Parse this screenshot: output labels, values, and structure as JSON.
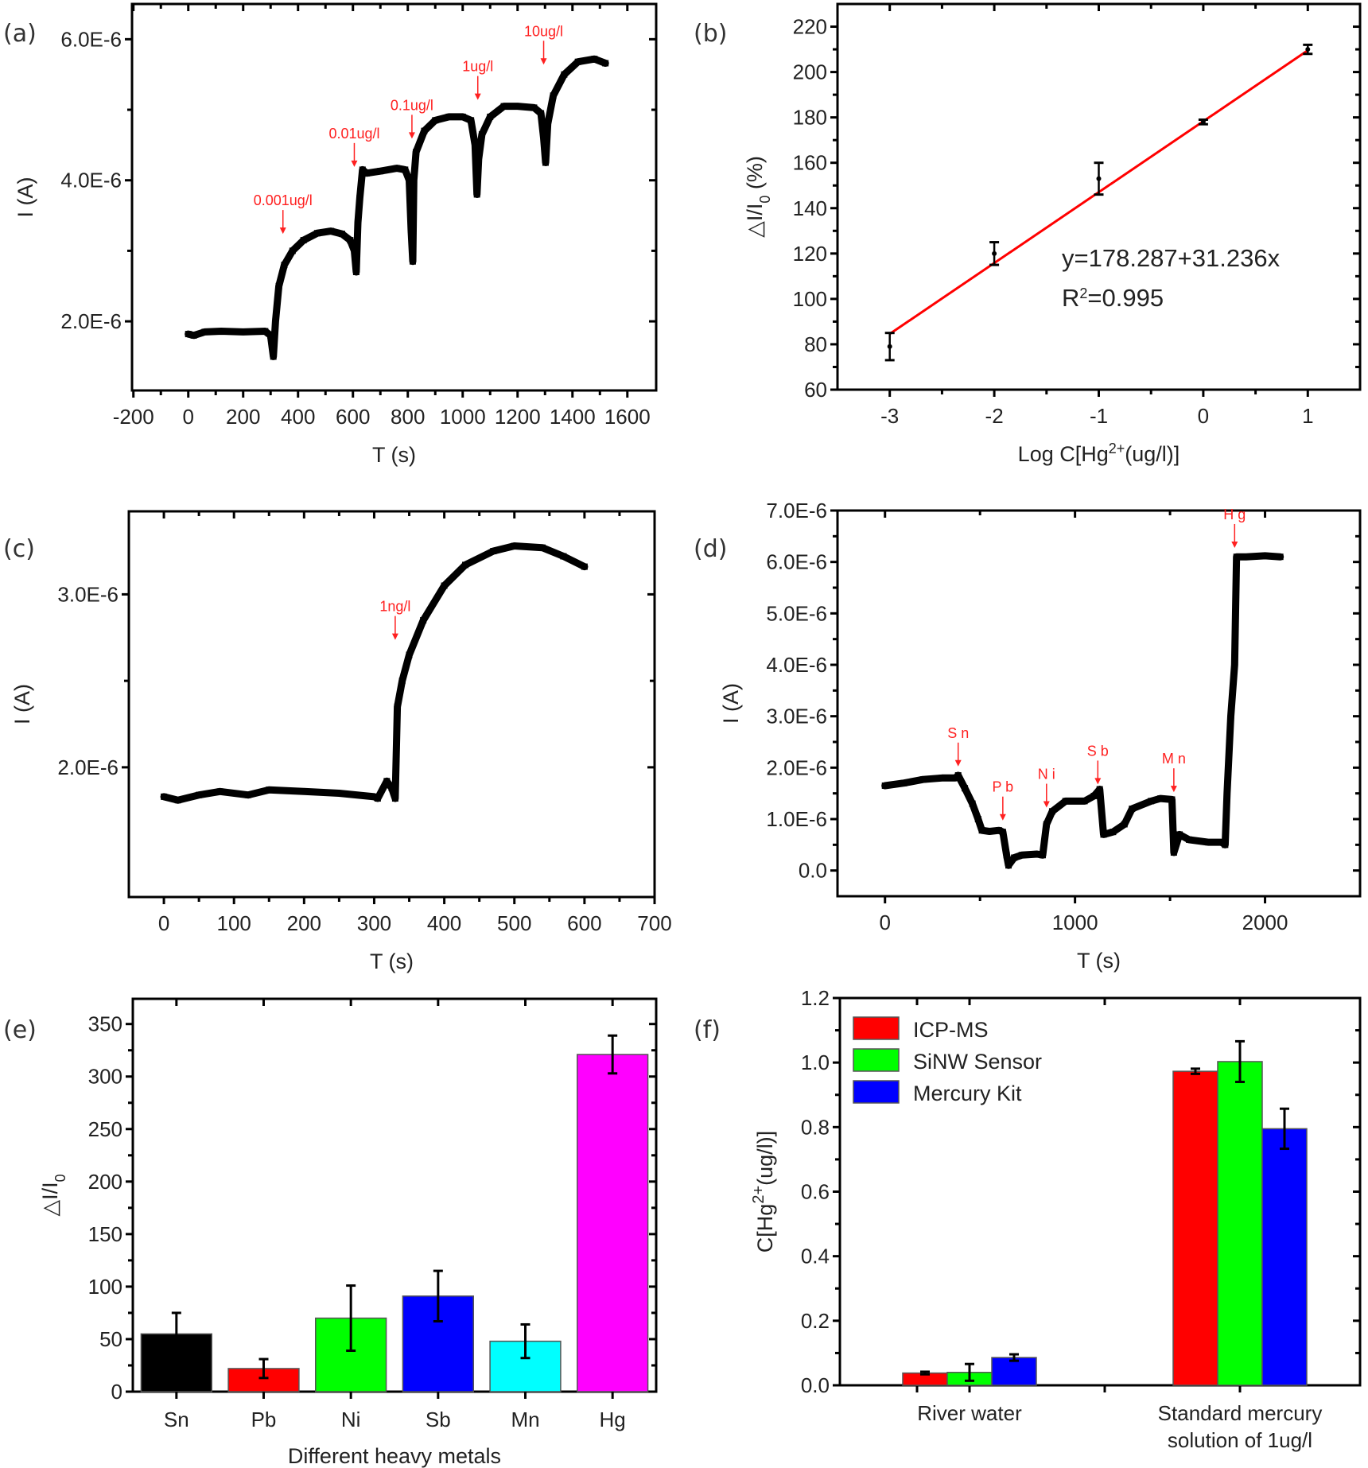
{
  "chart_data": [
    {
      "id": "a",
      "panel_label": "(a)",
      "type": "scatter",
      "xlabel": "T (s)",
      "ylabel": "I (A)",
      "xlim": [
        -205,
        1705
      ],
      "ylim": [
        1.02e-06,
        6.5e-06
      ],
      "xticks": [
        -200,
        0,
        200,
        400,
        600,
        800,
        1000,
        1200,
        1400,
        1600
      ],
      "xtick_labels": [
        "-200",
        "0",
        "200",
        "400",
        "600",
        "800",
        "1000",
        "1200",
        "1400",
        "1600"
      ],
      "yticks": [
        2e-06,
        4e-06,
        6e-06
      ],
      "ytick_labels": [
        "2.0E-6",
        "4.0E-6",
        "6.0E-6"
      ],
      "trace": [
        [
          0,
          1.82e-06
        ],
        [
          20,
          1.8e-06
        ],
        [
          60,
          1.85e-06
        ],
        [
          120,
          1.86e-06
        ],
        [
          200,
          1.85e-06
        ],
        [
          280,
          1.86e-06
        ],
        [
          300,
          1.8e-06
        ],
        [
          310,
          1.5e-06
        ],
        [
          318,
          2e-06
        ],
        [
          330,
          2.5e-06
        ],
        [
          350,
          2.8e-06
        ],
        [
          380,
          3e-06
        ],
        [
          420,
          3.15e-06
        ],
        [
          470,
          3.25e-06
        ],
        [
          520,
          3.28e-06
        ],
        [
          560,
          3.24e-06
        ],
        [
          590,
          3.15e-06
        ],
        [
          605,
          3e-06
        ],
        [
          612,
          2.7e-06
        ],
        [
          618,
          3.4e-06
        ],
        [
          625,
          3.75e-06
        ],
        [
          635,
          4.15e-06
        ],
        [
          650,
          4.1e-06
        ],
        [
          700,
          4.13e-06
        ],
        [
          760,
          4.17e-06
        ],
        [
          790,
          4.15e-06
        ],
        [
          805,
          4e-06
        ],
        [
          812,
          3.3e-06
        ],
        [
          818,
          2.85e-06
        ],
        [
          822,
          4e-06
        ],
        [
          830,
          4.4e-06
        ],
        [
          860,
          4.7e-06
        ],
        [
          900,
          4.85e-06
        ],
        [
          950,
          4.9e-06
        ],
        [
          1000,
          4.9e-06
        ],
        [
          1030,
          4.85e-06
        ],
        [
          1045,
          4.5e-06
        ],
        [
          1052,
          3.8e-06
        ],
        [
          1058,
          4.3e-06
        ],
        [
          1070,
          4.65e-06
        ],
        [
          1100,
          4.9e-06
        ],
        [
          1150,
          5.05e-06
        ],
        [
          1200,
          5.05e-06
        ],
        [
          1260,
          5.03e-06
        ],
        [
          1285,
          4.95e-06
        ],
        [
          1295,
          4.6e-06
        ],
        [
          1302,
          4.25e-06
        ],
        [
          1310,
          4.8e-06
        ],
        [
          1330,
          5.2e-06
        ],
        [
          1370,
          5.5e-06
        ],
        [
          1420,
          5.68e-06
        ],
        [
          1480,
          5.72e-06
        ],
        [
          1520,
          5.66e-06
        ]
      ],
      "annotations": [
        {
          "text": "0.001ug/l",
          "x": 345,
          "y": 3.15e-06
        },
        {
          "text": "0.01ug/l",
          "x": 605,
          "y": 4.1e-06
        },
        {
          "text": "0.1ug/l",
          "x": 815,
          "y": 4.5e-06
        },
        {
          "text": "1ug/l",
          "x": 1055,
          "y": 5.05e-06
        },
        {
          "text": "10ug/l",
          "x": 1295,
          "y": 5.55e-06
        }
      ]
    },
    {
      "id": "b",
      "panel_label": "(b)",
      "type": "scatter",
      "xlabel": "Log C[Hg",
      "xlabel_sup": "2+",
      "xlabel_tail": "(ug/l)]",
      "ylabel": "△I/I",
      "ylabel_sub": "0",
      "ylabel_tail": " (%)",
      "xlim": [
        -3.5,
        1.5
      ],
      "ylim": [
        60,
        230
      ],
      "xticks": [
        -3,
        -2,
        -1,
        0,
        1
      ],
      "xtick_labels": [
        "-3",
        "-2",
        "-1",
        "0",
        "1"
      ],
      "yticks": [
        60,
        80,
        100,
        120,
        140,
        160,
        180,
        200,
        220
      ],
      "ytick_labels": [
        "60",
        "80",
        "100",
        "120",
        "140",
        "160",
        "180",
        "200",
        "220"
      ],
      "points": [
        {
          "x": -3,
          "y": 79,
          "err_low": 73,
          "err_high": 85
        },
        {
          "x": -2,
          "y": 120,
          "err_low": 115,
          "err_high": 125
        },
        {
          "x": -1,
          "y": 153,
          "err_low": 146,
          "err_high": 160
        },
        {
          "x": 0,
          "y": 178,
          "err_low": 177,
          "err_high": 179
        },
        {
          "x": 1,
          "y": 210,
          "err_low": 208,
          "err_high": 212
        }
      ],
      "fit": {
        "intercept": 178.287,
        "slope": 31.236,
        "x_from": -3,
        "x_to": 1,
        "color": "#ff0000"
      },
      "equation": "y=178.287+31.236x",
      "r2_prefix": "R",
      "r2_sup": "2",
      "r2_value": "=0.995"
    },
    {
      "id": "c",
      "panel_label": "(c)",
      "type": "scatter",
      "xlabel": "T (s)",
      "ylabel": "I (A)",
      "xlim": [
        -50,
        700
      ],
      "ylim": [
        1.25e-06,
        3.48e-06
      ],
      "xticks": [
        0,
        100,
        200,
        300,
        400,
        500,
        600,
        700
      ],
      "xtick_labels": [
        "0",
        "100",
        "200",
        "300",
        "400",
        "500",
        "600",
        "700"
      ],
      "yticks": [
        2e-06,
        3e-06
      ],
      "ytick_labels": [
        "2.0E-6",
        "3.0E-6"
      ],
      "trace": [
        [
          0,
          1.83e-06
        ],
        [
          20,
          1.81e-06
        ],
        [
          50,
          1.84e-06
        ],
        [
          80,
          1.86e-06
        ],
        [
          120,
          1.84e-06
        ],
        [
          150,
          1.87e-06
        ],
        [
          200,
          1.86e-06
        ],
        [
          250,
          1.85e-06
        ],
        [
          300,
          1.83e-06
        ],
        [
          305,
          1.82e-06
        ],
        [
          318,
          1.92e-06
        ],
        [
          325,
          1.88e-06
        ],
        [
          330,
          1.82e-06
        ],
        [
          333,
          2.35e-06
        ],
        [
          340,
          2.5e-06
        ],
        [
          350,
          2.65e-06
        ],
        [
          370,
          2.85e-06
        ],
        [
          400,
          3.05e-06
        ],
        [
          430,
          3.17e-06
        ],
        [
          470,
          3.25e-06
        ],
        [
          500,
          3.28e-06
        ],
        [
          540,
          3.27e-06
        ],
        [
          570,
          3.22e-06
        ],
        [
          600,
          3.16e-06
        ]
      ],
      "annotations": [
        {
          "text": "1ng/l",
          "x": 330,
          "y": 2.7e-06
        }
      ]
    },
    {
      "id": "d",
      "panel_label": "(d)",
      "type": "scatter",
      "xlabel": "T (s)",
      "ylabel": "I (A)",
      "xlim": [
        -250,
        2500
      ],
      "ylim": [
        -5e-07,
        7e-06
      ],
      "xticks": [
        0,
        1000,
        2000
      ],
      "xtick_labels": [
        "0",
        "1000",
        "2000"
      ],
      "yticks": [
        0,
        1e-06,
        2e-06,
        3e-06,
        4e-06,
        5e-06,
        6e-06,
        7e-06
      ],
      "ytick_labels": [
        "0.0",
        "1.0E-6",
        "2.0E-6",
        "3.0E-6",
        "4.0E-6",
        "5.0E-6",
        "6.0E-6",
        "7.0E-6"
      ],
      "trace": [
        [
          0,
          1.65e-06
        ],
        [
          100,
          1.7e-06
        ],
        [
          200,
          1.77e-06
        ],
        [
          300,
          1.8e-06
        ],
        [
          370,
          1.8e-06
        ],
        [
          385,
          1.85e-06
        ],
        [
          420,
          1.6e-06
        ],
        [
          460,
          1.3e-06
        ],
        [
          490,
          1e-06
        ],
        [
          510,
          7.8e-07
        ],
        [
          550,
          7.6e-07
        ],
        [
          600,
          7.8e-07
        ],
        [
          620,
          7.5e-07
        ],
        [
          640,
          3e-07
        ],
        [
          650,
          1e-07
        ],
        [
          680,
          2.5e-07
        ],
        [
          720,
          3e-07
        ],
        [
          800,
          3.2e-07
        ],
        [
          830,
          3e-07
        ],
        [
          850,
          9e-07
        ],
        [
          880,
          1.15e-06
        ],
        [
          950,
          1.35e-06
        ],
        [
          1050,
          1.35e-06
        ],
        [
          1100,
          1.45e-06
        ],
        [
          1130,
          1.58e-06
        ],
        [
          1150,
          7e-07
        ],
        [
          1200,
          7.5e-07
        ],
        [
          1260,
          9e-07
        ],
        [
          1300,
          1.2e-06
        ],
        [
          1400,
          1.35e-06
        ],
        [
          1450,
          1.4e-06
        ],
        [
          1510,
          1.38e-06
        ],
        [
          1520,
          3.5e-07
        ],
        [
          1550,
          7e-07
        ],
        [
          1600,
          6e-07
        ],
        [
          1700,
          5.5e-07
        ],
        [
          1770,
          5.5e-07
        ],
        [
          1790,
          5e-07
        ],
        [
          1800,
          1.5e-06
        ],
        [
          1820,
          3e-06
        ],
        [
          1840,
          4e-06
        ],
        [
          1850,
          6.1e-06
        ],
        [
          1900,
          6.1e-06
        ],
        [
          2000,
          6.12e-06
        ],
        [
          2080,
          6.1e-06
        ]
      ],
      "annotations": [
        {
          "text": "S n",
          "x": 385,
          "y": 1.9e-06
        },
        {
          "text": "P b",
          "x": 620,
          "y": 8.5e-07
        },
        {
          "text": "N i",
          "x": 850,
          "y": 1.1e-06
        },
        {
          "text": "S b",
          "x": 1120,
          "y": 1.55e-06
        },
        {
          "text": "M n",
          "x": 1520,
          "y": 1.4e-06
        },
        {
          "text": "H g",
          "x": 1840,
          "y": 6.15e-06
        }
      ]
    },
    {
      "id": "e",
      "panel_label": "(e)",
      "type": "bar",
      "xlabel": "Different heavy metals",
      "ylabel": "△I/I",
      "ylabel_sub": "0",
      "ylim": [
        0,
        374
      ],
      "yticks": [
        0,
        50,
        100,
        150,
        200,
        250,
        300,
        350
      ],
      "ytick_labels": [
        "0",
        "50",
        "100",
        "150",
        "200",
        "250",
        "300",
        "350"
      ],
      "categories": [
        "Sn",
        "Pb",
        "Ni",
        "Sb",
        "Mn",
        "Hg"
      ],
      "values": [
        55,
        22,
        70,
        91,
        48,
        321
      ],
      "errors": [
        20,
        9,
        31,
        24,
        16,
        18
      ],
      "colors": [
        "#000000",
        "#ff0000",
        "#00ff00",
        "#0000ff",
        "#00ffff",
        "#ff00ff"
      ]
    },
    {
      "id": "f",
      "panel_label": "(f)",
      "type": "bar",
      "xlabel": "",
      "ylabel": "C[Hg",
      "ylabel_sup": "2+",
      "ylabel_tail": "(ug/l)]",
      "ylim": [
        0,
        1.2
      ],
      "yticks": [
        0,
        0.2,
        0.4,
        0.6,
        0.8,
        1.0,
        1.2
      ],
      "ytick_labels": [
        "0.0",
        "0.2",
        "0.4",
        "0.6",
        "0.8",
        "1.0",
        "1.2"
      ],
      "categories": [
        [
          "River water"
        ],
        [
          "Standard mercury",
          "solution of 1ug/l"
        ]
      ],
      "series": [
        {
          "name": "ICP-MS",
          "color": "#ff0000",
          "values": [
            0.038,
            0.973
          ],
          "errors": [
            0.004,
            0.008
          ]
        },
        {
          "name": "SiNW Sensor",
          "color": "#00ff00",
          "values": [
            0.04,
            1.003
          ],
          "errors": [
            0.026,
            0.063
          ]
        },
        {
          "name": "Mercury Kit",
          "color": "#0000ff",
          "values": [
            0.086,
            0.795
          ],
          "errors": [
            0.01,
            0.062
          ]
        }
      ],
      "legend_position": "top-left"
    }
  ]
}
